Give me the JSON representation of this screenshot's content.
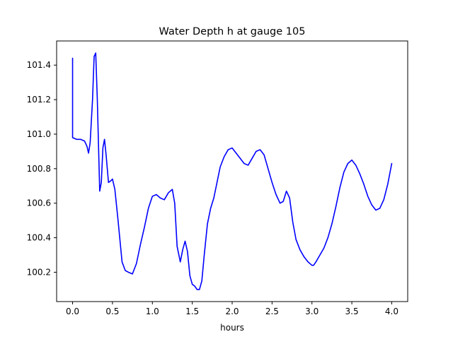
{
  "chart_data": {
    "type": "line",
    "title": "Water Depth h at gauge 105",
    "xlabel": "hours",
    "ylabel": "",
    "xlim": [
      -0.2,
      4.2
    ],
    "ylim": [
      100.03,
      101.54
    ],
    "xticks": [
      0.0,
      0.5,
      1.0,
      1.5,
      2.0,
      2.5,
      3.0,
      3.5,
      4.0
    ],
    "xtick_labels": [
      "0.0",
      "0.5",
      "1.0",
      "1.5",
      "2.0",
      "2.5",
      "3.0",
      "3.5",
      "4.0"
    ],
    "yticks": [
      100.2,
      100.4,
      100.6,
      100.8,
      101.0,
      101.2,
      101.4
    ],
    "ytick_labels": [
      "100.2",
      "100.4",
      "100.6",
      "100.8",
      "101.0",
      "101.2",
      "101.4"
    ],
    "grid": false,
    "series": [
      {
        "color": "#0000ff",
        "x": [
          0.0,
          0.0,
          0.0,
          0.05,
          0.1,
          0.15,
          0.18,
          0.2,
          0.22,
          0.25,
          0.27,
          0.29,
          0.31,
          0.34,
          0.36,
          0.38,
          0.4,
          0.42,
          0.45,
          0.48,
          0.5,
          0.53,
          0.57,
          0.62,
          0.66,
          0.7,
          0.75,
          0.8,
          0.85,
          0.9,
          0.95,
          1.0,
          1.05,
          1.1,
          1.15,
          1.2,
          1.25,
          1.28,
          1.31,
          1.35,
          1.38,
          1.41,
          1.44,
          1.47,
          1.5,
          1.53,
          1.56,
          1.59,
          1.62,
          1.65,
          1.69,
          1.73,
          1.77,
          1.81,
          1.85,
          1.9,
          1.95,
          2.0,
          2.05,
          2.1,
          2.15,
          2.2,
          2.25,
          2.3,
          2.35,
          2.4,
          2.45,
          2.5,
          2.55,
          2.6,
          2.64,
          2.68,
          2.72,
          2.76,
          2.8,
          2.85,
          2.9,
          2.95,
          3.0,
          3.02,
          3.05,
          3.1,
          3.15,
          3.2,
          3.25,
          3.3,
          3.35,
          3.4,
          3.45,
          3.5,
          3.55,
          3.6,
          3.65,
          3.7,
          3.75,
          3.8,
          3.85,
          3.9,
          3.95,
          4.0
        ],
        "y": [
          101.44,
          101.3,
          100.98,
          100.97,
          100.97,
          100.96,
          100.93,
          100.89,
          100.95,
          101.2,
          101.45,
          101.47,
          101.2,
          100.67,
          100.72,
          100.92,
          100.97,
          100.88,
          100.72,
          100.73,
          100.74,
          100.68,
          100.5,
          100.26,
          100.21,
          100.2,
          100.19,
          100.25,
          100.36,
          100.46,
          100.57,
          100.64,
          100.65,
          100.63,
          100.62,
          100.66,
          100.68,
          100.6,
          100.35,
          100.26,
          100.33,
          100.38,
          100.32,
          100.18,
          100.13,
          100.12,
          100.1,
          100.1,
          100.15,
          100.3,
          100.48,
          100.57,
          100.63,
          100.72,
          100.81,
          100.87,
          100.91,
          100.92,
          100.89,
          100.86,
          100.83,
          100.82,
          100.86,
          100.9,
          100.91,
          100.88,
          100.8,
          100.72,
          100.65,
          100.6,
          100.61,
          100.67,
          100.63,
          100.49,
          100.39,
          100.33,
          100.29,
          100.26,
          100.24,
          100.24,
          100.26,
          100.3,
          100.34,
          100.4,
          100.48,
          100.58,
          100.69,
          100.78,
          100.83,
          100.85,
          100.82,
          100.77,
          100.71,
          100.64,
          100.59,
          100.56,
          100.57,
          100.62,
          100.71,
          100.83
        ]
      }
    ]
  }
}
